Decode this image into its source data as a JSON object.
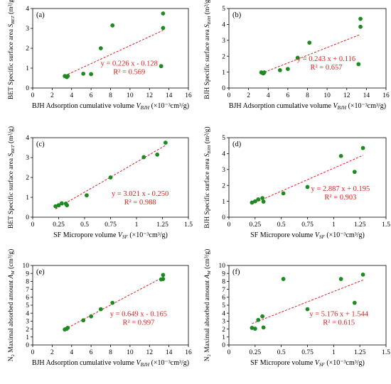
{
  "figure": {
    "marker_color": "#1e8a22",
    "fit_color": "#e01d1d",
    "axis_color": "#000000"
  },
  "chart_data": [
    {
      "type": "scatter",
      "panel_label": "(a)",
      "xlabel": "BJH Adsorption cumulative volume V_BJH (×10⁻³cm³/g)",
      "xlabel_parts": {
        "pre": "BJH Adsorption cumulative volume ",
        "sym": "V",
        "sub": "BJH",
        "post": "  (×10⁻³cm³/g)"
      },
      "ylabel_parts": {
        "pre": "BET Specific  surface area ",
        "sym": "S",
        "sub": "BET",
        "post": " (m²/g)"
      },
      "xlim": [
        0,
        16
      ],
      "xticks": [
        0,
        2,
        4,
        6,
        8,
        10,
        12,
        14,
        16
      ],
      "ylim": [
        0,
        4
      ],
      "yticks": [
        0,
        1,
        2,
        3,
        4
      ],
      "points": [
        [
          3.3,
          0.6
        ],
        [
          3.5,
          0.55
        ],
        [
          3.6,
          0.6
        ],
        [
          5.2,
          0.72
        ],
        [
          6.0,
          0.7
        ],
        [
          7.0,
          2.0
        ],
        [
          8.2,
          3.15
        ],
        [
          13.2,
          1.1
        ],
        [
          13.4,
          3.02
        ],
        [
          13.4,
          3.75
        ]
      ],
      "fit": {
        "x": [
          3.3,
          13.4
        ],
        "slope": 0.226,
        "intercept": -0.128
      },
      "equation": {
        "eq": "y = 0.226 x - 0.128",
        "r2": "R² = 0.569"
      }
    },
    {
      "type": "scatter",
      "panel_label": "(b)",
      "xlabel": "BJH Adsorption cumulative volume V_BJH (×10⁻³cm³/g)",
      "xlabel_parts": {
        "pre": "BJH Adsorption cumulative volume ",
        "sym": "V",
        "sub": "BJH",
        "post": "  (×10⁻³cm³/g)"
      },
      "ylabel_parts": {
        "pre": "BJH Specific  surface area ",
        "sym": "S",
        "sub": "BJH",
        "post": " (m²/g)"
      },
      "xlim": [
        0,
        16
      ],
      "xticks": [
        0,
        2,
        4,
        6,
        8,
        10,
        12,
        14,
        16
      ],
      "ylim": [
        0,
        5
      ],
      "yticks": [
        0,
        1,
        2,
        3,
        4,
        5
      ],
      "points": [
        [
          3.3,
          0.98
        ],
        [
          3.5,
          0.92
        ],
        [
          3.6,
          0.98
        ],
        [
          5.2,
          1.12
        ],
        [
          6.0,
          1.2
        ],
        [
          7.0,
          1.9
        ],
        [
          8.2,
          2.85
        ],
        [
          13.2,
          1.5
        ],
        [
          13.4,
          3.85
        ],
        [
          13.4,
          4.35
        ]
      ],
      "fit": {
        "x": [
          3.3,
          13.4
        ],
        "slope": 0.243,
        "intercept": 0.116
      },
      "equation": {
        "eq": "y = 0.243 x + 0.116",
        "r2": "R² = 0.657"
      }
    },
    {
      "type": "scatter",
      "panel_label": "(c)",
      "xlabel": "SF Micropore volume V_SF (×10⁻³cm³/g)",
      "xlabel_parts": {
        "pre": "SF Micropore volume ",
        "sym": "V",
        "sub": "SF",
        "post": "  (×10⁻³cm³/g)"
      },
      "ylabel_parts": {
        "pre": "BET Specific  surface area ",
        "sym": "S",
        "sub": "BET",
        "post": " (m²/g)"
      },
      "xlim": [
        0,
        1.5
      ],
      "xticks": [
        0,
        0.25,
        0.5,
        0.75,
        1,
        1.25,
        1.5
      ],
      "ylim": [
        0,
        4
      ],
      "yticks": [
        0,
        1,
        2,
        3,
        4
      ],
      "points": [
        [
          0.22,
          0.55
        ],
        [
          0.25,
          0.6
        ],
        [
          0.28,
          0.7
        ],
        [
          0.32,
          0.68
        ],
        [
          0.33,
          0.6
        ],
        [
          0.52,
          1.1
        ],
        [
          0.75,
          2.0
        ],
        [
          1.07,
          3.02
        ],
        [
          1.2,
          3.15
        ],
        [
          1.28,
          3.75
        ]
      ],
      "fit": {
        "x": [
          0.22,
          1.28
        ],
        "slope": 3.021,
        "intercept": -0.25
      },
      "equation": {
        "eq": "y = 3.021 x - 0.250",
        "r2": "R² = 0.988"
      }
    },
    {
      "type": "scatter",
      "panel_label": "(d)",
      "xlabel": "SF Micropore volume V_SF (×10⁻³cm³/g)",
      "xlabel_parts": {
        "pre": "SF Micropore volume ",
        "sym": "V",
        "sub": "SF",
        "post": "  (×10⁻³cm³/g)"
      },
      "ylabel_parts": {
        "pre": "BJH Specific  surface area ",
        "sym": "S",
        "sub": "BJH",
        "post": " (m²/g)"
      },
      "xlim": [
        0,
        1.5
      ],
      "xticks": [
        0,
        0.25,
        0.5,
        0.75,
        1,
        1.25,
        1.5
      ],
      "ylim": [
        0,
        5
      ],
      "yticks": [
        0,
        1,
        2,
        3,
        4,
        5
      ],
      "points": [
        [
          0.22,
          0.92
        ],
        [
          0.25,
          1.0
        ],
        [
          0.28,
          1.12
        ],
        [
          0.32,
          1.2
        ],
        [
          0.33,
          0.98
        ],
        [
          0.52,
          1.5
        ],
        [
          0.75,
          1.9
        ],
        [
          1.07,
          3.85
        ],
        [
          1.2,
          2.85
        ],
        [
          1.28,
          4.35
        ]
      ],
      "fit": {
        "x": [
          0.22,
          1.28
        ],
        "slope": 2.887,
        "intercept": 0.195
      },
      "equation": {
        "eq": "y = 2.887 x + 0.195",
        "r2": "R² = 0.903"
      }
    },
    {
      "type": "scatter",
      "panel_label": "(e)",
      "xlabel": "BJH Adsorption cumulative volume V_BJH (×10⁻³cm³/g)",
      "xlabel_parts": {
        "pre": "BJH Adsorption cumulative volume ",
        "sym": "V",
        "sub": "BJH",
        "post": "  (×10⁻³cm³/g)"
      },
      "ylabel_parts": {
        "pre": "N₂ Maximal absorbed amount ",
        "sym": "A",
        "sub": "M",
        "post": " (cm³/g)"
      },
      "xlim": [
        0,
        16
      ],
      "xticks": [
        0,
        2,
        4,
        6,
        8,
        10,
        12,
        14,
        16
      ],
      "ylim": [
        0,
        10
      ],
      "yticks": [
        0,
        1,
        2,
        3,
        4,
        5,
        6,
        7,
        8,
        9,
        10
      ],
      "points": [
        [
          3.3,
          1.95
        ],
        [
          3.5,
          2.05
        ],
        [
          3.6,
          2.15
        ],
        [
          5.2,
          3.1
        ],
        [
          6.0,
          3.6
        ],
        [
          7.0,
          4.5
        ],
        [
          8.2,
          5.3
        ],
        [
          13.2,
          8.25
        ],
        [
          13.4,
          8.3
        ],
        [
          13.4,
          8.8
        ]
      ],
      "fit": {
        "x": [
          3.3,
          13.4
        ],
        "slope": 0.649,
        "intercept": -0.165
      },
      "equation": {
        "eq": "y = 0.649 x - 0.165",
        "r2": "R² = 0.997"
      }
    },
    {
      "type": "scatter",
      "panel_label": "(f)",
      "xlabel": "SF Micropore volume V_SF (×10⁻³cm³/g)",
      "xlabel_parts": {
        "pre": "SF Micropore volume ",
        "sym": "V",
        "sub": "SF",
        "post": "  (×10⁻³cm³/g)"
      },
      "ylabel_parts": {
        "pre": "N₂ Maximal absorbed amount ",
        "sym": "A",
        "sub": "M",
        "post": " (cm³/g)"
      },
      "xlim": [
        0,
        1.5
      ],
      "xticks": [
        0,
        0.25,
        0.5,
        0.75,
        1,
        1.25,
        1.5
      ],
      "ylim": [
        0,
        10
      ],
      "yticks": [
        0,
        1,
        2,
        3,
        4,
        5,
        6,
        7,
        8,
        9,
        10
      ],
      "points": [
        [
          0.22,
          2.15
        ],
        [
          0.25,
          2.05
        ],
        [
          0.28,
          3.15
        ],
        [
          0.32,
          3.6
        ],
        [
          0.33,
          2.2
        ],
        [
          0.52,
          8.3
        ],
        [
          0.75,
          4.5
        ],
        [
          1.07,
          8.3
        ],
        [
          1.2,
          5.3
        ],
        [
          1.28,
          8.85
        ]
      ],
      "fit": {
        "x": [
          0.22,
          1.28
        ],
        "slope": 5.176,
        "intercept": 1.544
      },
      "equation": {
        "eq": "y = 5.176 x + 1.544",
        "r2": "R² = 0.615"
      }
    }
  ]
}
